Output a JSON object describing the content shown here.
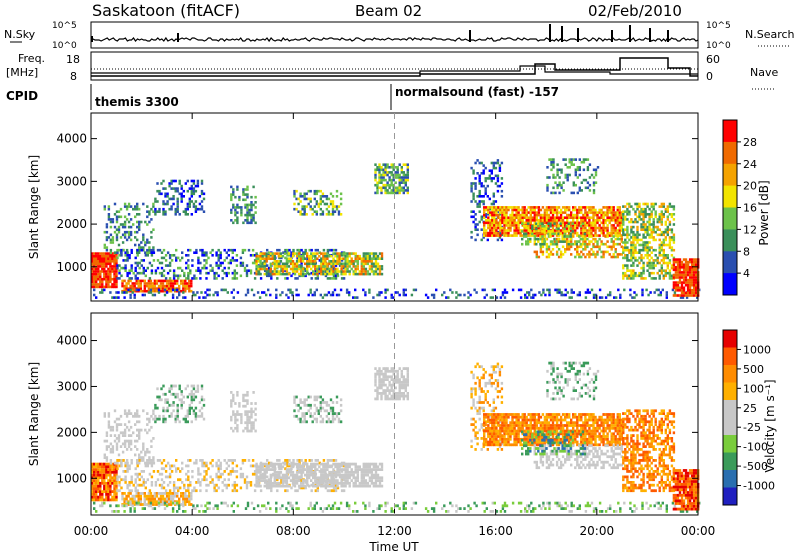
{
  "header": {
    "station": "Saskatoon (fitACF)",
    "beam": "Beam 02",
    "date": "02/Feb/2010"
  },
  "strip_labels": {
    "nsky": "N.Sky",
    "freq_line1": "Freq.",
    "freq_line2": "[MHz]",
    "cpid": "CPID",
    "nsearch": "N.Search",
    "nave": "Nave"
  },
  "strip_ticks": {
    "nsky_top": "10^5",
    "nsky_bottom": "10^0",
    "freq_top": "18",
    "freq_bottom": "8",
    "nave_top": "60",
    "nave_bottom": "0"
  },
  "cpid": {
    "left": "themis 3300",
    "right": "normalsound (fast) -157"
  },
  "colors": {
    "power": [
      "#0000ff",
      "#2a4fb0",
      "#3a8f5a",
      "#6cc24a",
      "#f2e400",
      "#f5a300",
      "#f06a00",
      "#ff0000"
    ],
    "velocity": [
      "#e60000",
      "#ff5a00",
      "#ff8c00",
      "#ffb000",
      "#c8c8c8",
      "#c8c8c8",
      "#7acd3c",
      "#3a9b5a",
      "#2a6fb0",
      "#2020c0"
    ]
  },
  "chart_data": [
    {
      "type": "heatmap",
      "name": "power",
      "ylabel": "Slant Range [km]",
      "xlabel": "Time UT",
      "x_ticks": [
        "00:00",
        "04:00",
        "08:00",
        "12:00",
        "16:00",
        "20:00",
        "00:00"
      ],
      "y_ticks": [
        "1000",
        "2000",
        "3000",
        "4000"
      ],
      "ylim": [
        200,
        4600
      ],
      "colorbar_label": "Power [dB]",
      "colorbar_ticks": [
        "4",
        "8",
        "12",
        "16",
        "20",
        "24",
        "28"
      ]
    },
    {
      "type": "heatmap",
      "name": "velocity",
      "ylabel": "Slant Range [km]",
      "xlabel": "Time UT",
      "x_ticks": [
        "00:00",
        "04:00",
        "08:00",
        "12:00",
        "16:00",
        "20:00",
        "00:00"
      ],
      "y_ticks": [
        "1000",
        "2000",
        "3000",
        "4000"
      ],
      "ylim": [
        200,
        4600
      ],
      "colorbar_label": "Velocity [m s⁻¹]",
      "colorbar_ticks": [
        "1000",
        "500",
        "100",
        "25",
        "-25",
        "-100",
        "-500",
        "-1000"
      ]
    }
  ],
  "axis": {
    "xlabel": "Time UT"
  }
}
